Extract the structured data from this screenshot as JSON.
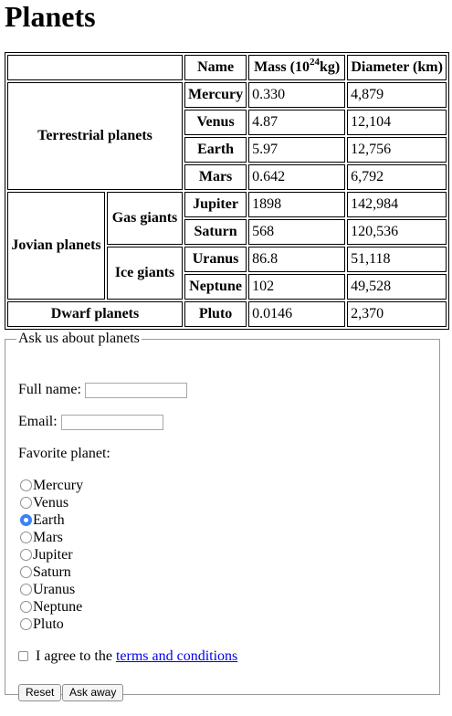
{
  "page": {
    "title": "Planets"
  },
  "table": {
    "headers": {
      "name": "Name",
      "mass_prefix": "Mass (10",
      "mass_exp": "24",
      "mass_suffix": "kg)",
      "diameter": "Diameter (km)"
    },
    "groups": {
      "terrestrial": "Terrestrial planets",
      "jovian": "Jovian planets",
      "gas_giants": "Gas giants",
      "ice_giants": "Ice giants",
      "dwarf": "Dwarf planets"
    },
    "rows": [
      {
        "name": "Mercury",
        "mass": "0.330",
        "diameter": "4,879"
      },
      {
        "name": "Venus",
        "mass": "4.87",
        "diameter": "12,104"
      },
      {
        "name": "Earth",
        "mass": "5.97",
        "diameter": "12,756"
      },
      {
        "name": "Mars",
        "mass": "0.642",
        "diameter": "6,792"
      },
      {
        "name": "Jupiter",
        "mass": "1898",
        "diameter": "142,984"
      },
      {
        "name": "Saturn",
        "mass": "568",
        "diameter": "120,536"
      },
      {
        "name": "Uranus",
        "mass": "86.8",
        "diameter": "51,118"
      },
      {
        "name": "Neptune",
        "mass": "102",
        "diameter": "49,528"
      },
      {
        "name": "Pluto",
        "mass": "0.0146",
        "diameter": "2,370"
      }
    ]
  },
  "form": {
    "legend": "Ask us about planets",
    "full_name_label": "Full name:",
    "full_name_value": "",
    "email_label": "Email:",
    "email_value": "",
    "favorite_label": "Favorite planet:",
    "options": [
      "Mercury",
      "Venus",
      "Earth",
      "Mars",
      "Jupiter",
      "Saturn",
      "Uranus",
      "Neptune",
      "Pluto"
    ],
    "selected": "Earth",
    "agree_prefix": "I agree to the ",
    "agree_link": "terms and conditions",
    "agree_checked": false,
    "reset_label": "Reset",
    "submit_label": "Ask away",
    "accent_color": "#3b82f6",
    "link_color": "#0000ee"
  }
}
